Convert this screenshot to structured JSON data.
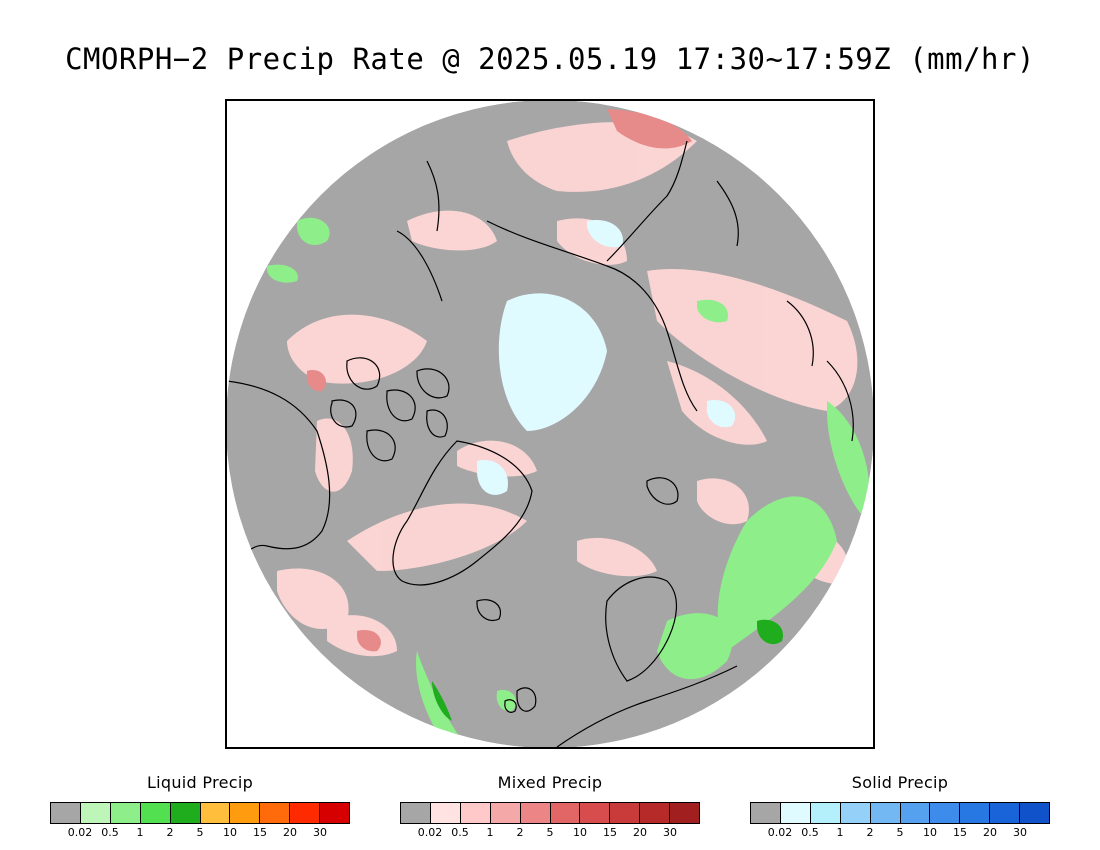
{
  "title": "CMORPH−2 Precip Rate @ 2025.05.19 17:30~17:59Z (mm/hr)",
  "map": {
    "projection": "north-polar-stereographic",
    "colors": {
      "no_precip": "#a6a6a6",
      "coastline": "#000000",
      "frame": "#000000"
    }
  },
  "legends": [
    {
      "title": "Liquid Precip",
      "ticks": [
        "0.02",
        "0.5",
        "1",
        "2",
        "5",
        "10",
        "15",
        "20",
        "30"
      ],
      "colors": [
        "#a6a6a6",
        "#bdf6b8",
        "#8eef8a",
        "#52e050",
        "#20ad1d",
        "#ffbe3b",
        "#ff9b0e",
        "#ff6a0b",
        "#ff2a00",
        "#d60000"
      ]
    },
    {
      "title": "Mixed Precip",
      "ticks": [
        "0.02",
        "0.5",
        "1",
        "2",
        "5",
        "10",
        "15",
        "20",
        "30"
      ],
      "colors": [
        "#a6a6a6",
        "#ffe3e3",
        "#ffc9c9",
        "#f4a8a8",
        "#ec8686",
        "#e26666",
        "#d74d4d",
        "#c93a3a",
        "#b72a2a",
        "#a21f1f"
      ]
    },
    {
      "title": "Solid Precip",
      "ticks": [
        "0.02",
        "0.5",
        "1",
        "2",
        "5",
        "10",
        "15",
        "20",
        "30"
      ],
      "colors": [
        "#a6a6a6",
        "#e0fbff",
        "#b4f0fb",
        "#94d0f7",
        "#74b8f3",
        "#55a0ef",
        "#3d8ceb",
        "#2878e3",
        "#1964d8",
        "#0f52c9"
      ]
    }
  ]
}
